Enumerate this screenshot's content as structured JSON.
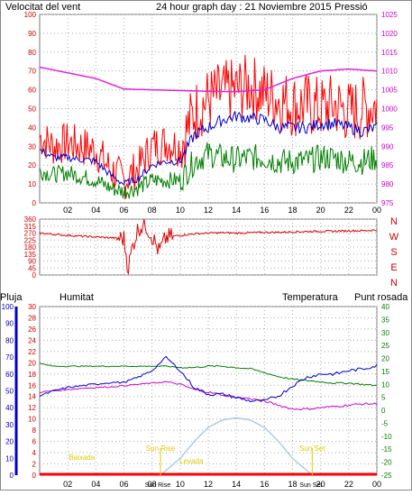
{
  "colors": {
    "wind": "#ff0000",
    "gust_avg": "#0000cc",
    "wind_low": "#008000",
    "pressure": "#e020e0",
    "direction": "#dd0000",
    "humidity": "#0000cc",
    "temperature": "#008000",
    "dewpoint": "#d000d0",
    "rain": "#ff0000",
    "sun": "#aaccee",
    "astro": "#ddcc00"
  },
  "header": {
    "left": "Velocitat del vent",
    "center": "24 hour graph day : 21 Noviembre 2015",
    "right": "Pressió"
  },
  "xticks": [
    "02",
    "04",
    "06",
    "08",
    "10",
    "12",
    "14",
    "16",
    "18",
    "20",
    "22",
    "00"
  ],
  "panel_wind": {
    "y_left_ticks": [
      "0",
      "10",
      "20",
      "30",
      "40",
      "50",
      "60",
      "70",
      "80",
      "90",
      "100"
    ],
    "y_right_ticks": [
      "975",
      "980",
      "985",
      "990",
      "995",
      "1000",
      "1005",
      "1010",
      "1015",
      "1020",
      "1025"
    ]
  },
  "panel_dir": {
    "y_ticks": [
      "0",
      "45",
      "90",
      "135",
      "180",
      "225",
      "270",
      "315",
      "360"
    ],
    "compass": [
      "N",
      "W",
      "S",
      "E",
      "N"
    ]
  },
  "panel_bottom": {
    "labels": {
      "rain": "Pluja",
      "humidity": "Humitat",
      "temperature": "Temperatura",
      "dewpoint": "Punt rosada"
    },
    "y_humidity_ticks": [
      "0",
      "10",
      "20",
      "30",
      "40",
      "50",
      "60",
      "70",
      "80",
      "90",
      "100"
    ],
    "y_rain_ticks": [
      "0",
      "2",
      "4",
      "6",
      "8",
      "10",
      "12",
      "14",
      "16",
      "18",
      "20",
      "22",
      "24",
      "26",
      "28",
      "30"
    ],
    "y_temp_ticks": [
      "-25",
      "-20",
      "-15",
      "-10",
      "-5",
      "0",
      "5",
      "10",
      "15",
      "20",
      "25",
      "30",
      "35",
      "40"
    ],
    "astro_labels": {
      "moonset": "Baixada",
      "sunrise": "Sun Rise",
      "moonrise": "Levada",
      "sunset": "Sun Set",
      "sunrise_x": "Sun Rise",
      "sunset_x": "Sun Set"
    }
  },
  "chart_data": [
    {
      "type": "line",
      "title": "24 hour graph day : 21 Noviembre 2015",
      "xlabel": "",
      "x_range_hours": [
        0,
        24
      ],
      "ylim_left": [
        0,
        100
      ],
      "ylim_right": [
        975,
        1025
      ],
      "series": [
        {
          "name": "Velocitat del vent",
          "axis": "left",
          "hours": [
            0,
            1,
            2,
            3,
            4,
            5,
            6,
            7,
            8,
            9,
            10,
            11,
            12,
            13,
            14,
            15,
            16,
            17,
            18,
            19,
            20,
            21,
            22,
            23,
            24
          ],
          "values": [
            35,
            30,
            32,
            30,
            28,
            18,
            12,
            18,
            30,
            32,
            30,
            48,
            55,
            58,
            60,
            62,
            58,
            55,
            52,
            52,
            50,
            52,
            48,
            50,
            52
          ]
        },
        {
          "name": "",
          "axis": "left",
          "hours": [
            0,
            1,
            2,
            3,
            4,
            5,
            6,
            7,
            8,
            9,
            10,
            11,
            12,
            13,
            14,
            15,
            16,
            17,
            18,
            19,
            20,
            21,
            22,
            23,
            24
          ],
          "values": [
            28,
            24,
            24,
            23,
            22,
            15,
            10,
            13,
            20,
            22,
            22,
            36,
            40,
            44,
            46,
            45,
            44,
            40,
            40,
            40,
            42,
            42,
            40,
            38,
            40
          ]
        },
        {
          "name": "",
          "axis": "left",
          "hours": [
            0,
            1,
            2,
            3,
            4,
            5,
            6,
            7,
            8,
            9,
            10,
            11,
            12,
            13,
            14,
            15,
            16,
            17,
            18,
            19,
            20,
            21,
            22,
            23,
            24
          ],
          "values": [
            17,
            15,
            16,
            14,
            12,
            8,
            6,
            8,
            12,
            12,
            12,
            22,
            26,
            24,
            23,
            24,
            24,
            22,
            22,
            22,
            24,
            24,
            22,
            22,
            24
          ]
        },
        {
          "name": "Pressió",
          "axis": "right",
          "hours": [
            0,
            2,
            4,
            6,
            8,
            10,
            12,
            14,
            16,
            18,
            20,
            22,
            24
          ],
          "values": [
            1011,
            1009.5,
            1008,
            1005.2,
            1005,
            1004.8,
            1004.6,
            1004.5,
            1005,
            1008,
            1010,
            1010.5,
            1010
          ]
        }
      ]
    },
    {
      "type": "scatter",
      "title": "",
      "ylim": [
        0,
        360
      ],
      "series": [
        {
          "name": "",
          "hours": [
            0,
            1,
            2,
            3,
            4,
            5,
            6,
            6.3,
            6.6,
            7,
            7.5,
            8,
            8.5,
            9,
            9.5,
            10,
            11,
            12,
            13,
            14,
            15,
            16,
            17,
            18,
            19,
            20,
            21,
            22,
            23,
            24
          ],
          "values": [
            270,
            262,
            255,
            250,
            245,
            240,
            235,
            40,
            180,
            300,
            330,
            250,
            150,
            240,
            250,
            255,
            265,
            270,
            272,
            270,
            272,
            275,
            275,
            278,
            280,
            282,
            282,
            285,
            285,
            290
          ]
        }
      ]
    },
    {
      "type": "line",
      "title": "",
      "ylim_humidity": [
        0,
        100
      ],
      "ylim_rain": [
        0,
        30
      ],
      "ylim_temp": [
        -25,
        40
      ],
      "series": [
        {
          "name": "Humitat",
          "axis": "humidity",
          "hours": [
            0,
            1,
            2,
            3,
            4,
            5,
            6,
            7,
            8,
            9,
            10,
            11,
            12,
            13,
            14,
            15,
            16,
            17,
            18,
            19,
            20,
            21,
            22,
            23,
            24
          ],
          "values": [
            47,
            50,
            52,
            53,
            54,
            55,
            55,
            58,
            62,
            70,
            62,
            52,
            48,
            48,
            46,
            44,
            44,
            47,
            53,
            58,
            60,
            60,
            62,
            63,
            65
          ]
        },
        {
          "name": "Temperatura",
          "axis": "temp",
          "hours": [
            0,
            1,
            2,
            3,
            4,
            5,
            6,
            7,
            8,
            9,
            10,
            11,
            12,
            13,
            14,
            15,
            16,
            17,
            18,
            19,
            20,
            21,
            22,
            23,
            24
          ],
          "values": [
            18,
            17,
            17,
            17,
            17,
            17,
            17,
            17,
            17,
            17,
            16.5,
            16.5,
            17,
            17,
            16.5,
            16,
            14.5,
            13,
            12,
            11.5,
            11,
            10.5,
            10.5,
            10,
            9.5
          ]
        },
        {
          "name": "Punt rosada",
          "axis": "temp",
          "hours": [
            0,
            1,
            2,
            3,
            4,
            5,
            6,
            7,
            8,
            9,
            10,
            11,
            12,
            13,
            14,
            15,
            16,
            17,
            18,
            19,
            20,
            21,
            22,
            23,
            24
          ],
          "values": [
            7,
            7.5,
            8,
            8.5,
            8.8,
            9,
            9.5,
            10,
            10.5,
            11,
            10,
            8,
            7,
            6,
            5,
            4.5,
            3.5,
            2,
            0.5,
            0.5,
            1,
            1.5,
            2,
            2.5,
            2.5
          ]
        },
        {
          "name": "Pluja",
          "axis": "rain",
          "hours": [
            0,
            12,
            24
          ],
          "values": [
            0,
            0,
            0
          ]
        },
        {
          "name": "",
          "axis": "rain",
          "hours": [
            8.6,
            10,
            11,
            12,
            13,
            14,
            15,
            16,
            17,
            18,
            19.4
          ],
          "values": [
            0,
            3,
            6,
            8.5,
            9.8,
            10.2,
            9.8,
            8.5,
            6,
            3,
            0
          ]
        }
      ]
    }
  ]
}
